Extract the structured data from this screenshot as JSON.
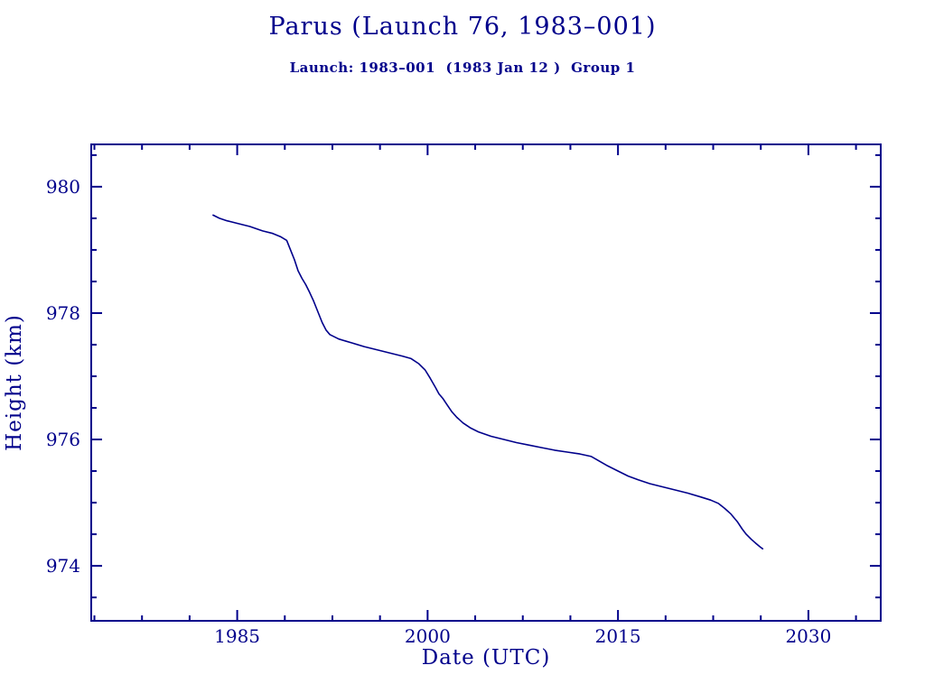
{
  "header": {
    "title": "Parus (Launch 76, 1983–001)",
    "subtitle": "Launch: 1983–001  (1983 Jan 12 )  Group 1"
  },
  "chart_data": {
    "type": "line",
    "title": "Parus (Launch 76, 1983–001)",
    "subtitle": "Launch: 1983–001  (1983 Jan 12 )  Group 1",
    "xlabel": "Date (UTC)",
    "ylabel": "Height (km)",
    "xlim": [
      1973.5,
      2035.7
    ],
    "ylim": [
      973.13,
      980.67
    ],
    "x_major_ticks": [
      1985,
      2000,
      2015,
      2030
    ],
    "x_minor_step": 3.75,
    "y_major_ticks": [
      974,
      976,
      978,
      980
    ],
    "y_minor_step": 0.5,
    "grid": false,
    "legend": "none",
    "line_color": "#00008B",
    "axis_color": "#00008B",
    "series": [
      {
        "name": "height-km-vs-date",
        "points": [
          [
            1983.1,
            979.55
          ],
          [
            1983.6,
            979.5
          ],
          [
            1984.2,
            979.46
          ],
          [
            1985.0,
            979.42
          ],
          [
            1986.0,
            979.37
          ],
          [
            1987.0,
            979.3
          ],
          [
            1987.8,
            979.26
          ],
          [
            1988.4,
            979.21
          ],
          [
            1988.9,
            979.15
          ],
          [
            1989.2,
            979.0
          ],
          [
            1989.5,
            978.85
          ],
          [
            1989.8,
            978.67
          ],
          [
            1990.1,
            978.55
          ],
          [
            1990.4,
            978.45
          ],
          [
            1990.7,
            978.33
          ],
          [
            1991.0,
            978.2
          ],
          [
            1991.4,
            978.0
          ],
          [
            1991.7,
            977.85
          ],
          [
            1992.0,
            977.73
          ],
          [
            1992.3,
            977.66
          ],
          [
            1993.0,
            977.59
          ],
          [
            1994.0,
            977.53
          ],
          [
            1995.0,
            977.47
          ],
          [
            1996.0,
            977.42
          ],
          [
            1997.0,
            977.37
          ],
          [
            1998.0,
            977.32
          ],
          [
            1998.7,
            977.28
          ],
          [
            1999.3,
            977.2
          ],
          [
            1999.8,
            977.1
          ],
          [
            2000.2,
            976.97
          ],
          [
            2000.6,
            976.83
          ],
          [
            2000.9,
            976.72
          ],
          [
            2001.2,
            976.65
          ],
          [
            2001.5,
            976.56
          ],
          [
            2001.9,
            976.44
          ],
          [
            2002.3,
            976.35
          ],
          [
            2002.8,
            976.26
          ],
          [
            2003.4,
            976.18
          ],
          [
            2004.0,
            976.12
          ],
          [
            2005.0,
            976.05
          ],
          [
            2006.0,
            976.0
          ],
          [
            2007.0,
            975.95
          ],
          [
            2008.0,
            975.91
          ],
          [
            2009.0,
            975.87
          ],
          [
            2010.0,
            975.83
          ],
          [
            2011.0,
            975.8
          ],
          [
            2012.0,
            975.77
          ],
          [
            2012.9,
            975.73
          ],
          [
            2013.5,
            975.66
          ],
          [
            2014.2,
            975.58
          ],
          [
            2015.0,
            975.5
          ],
          [
            2015.8,
            975.42
          ],
          [
            2016.6,
            975.36
          ],
          [
            2017.5,
            975.3
          ],
          [
            2018.5,
            975.25
          ],
          [
            2019.5,
            975.2
          ],
          [
            2020.5,
            975.15
          ],
          [
            2021.5,
            975.09
          ],
          [
            2022.3,
            975.04
          ],
          [
            2022.9,
            974.99
          ],
          [
            2023.4,
            974.91
          ],
          [
            2023.9,
            974.82
          ],
          [
            2024.4,
            974.7
          ],
          [
            2024.8,
            974.58
          ],
          [
            2025.1,
            974.5
          ],
          [
            2025.5,
            974.42
          ],
          [
            2025.9,
            974.35
          ],
          [
            2026.2,
            974.3
          ],
          [
            2026.4,
            974.27
          ]
        ]
      }
    ]
  }
}
